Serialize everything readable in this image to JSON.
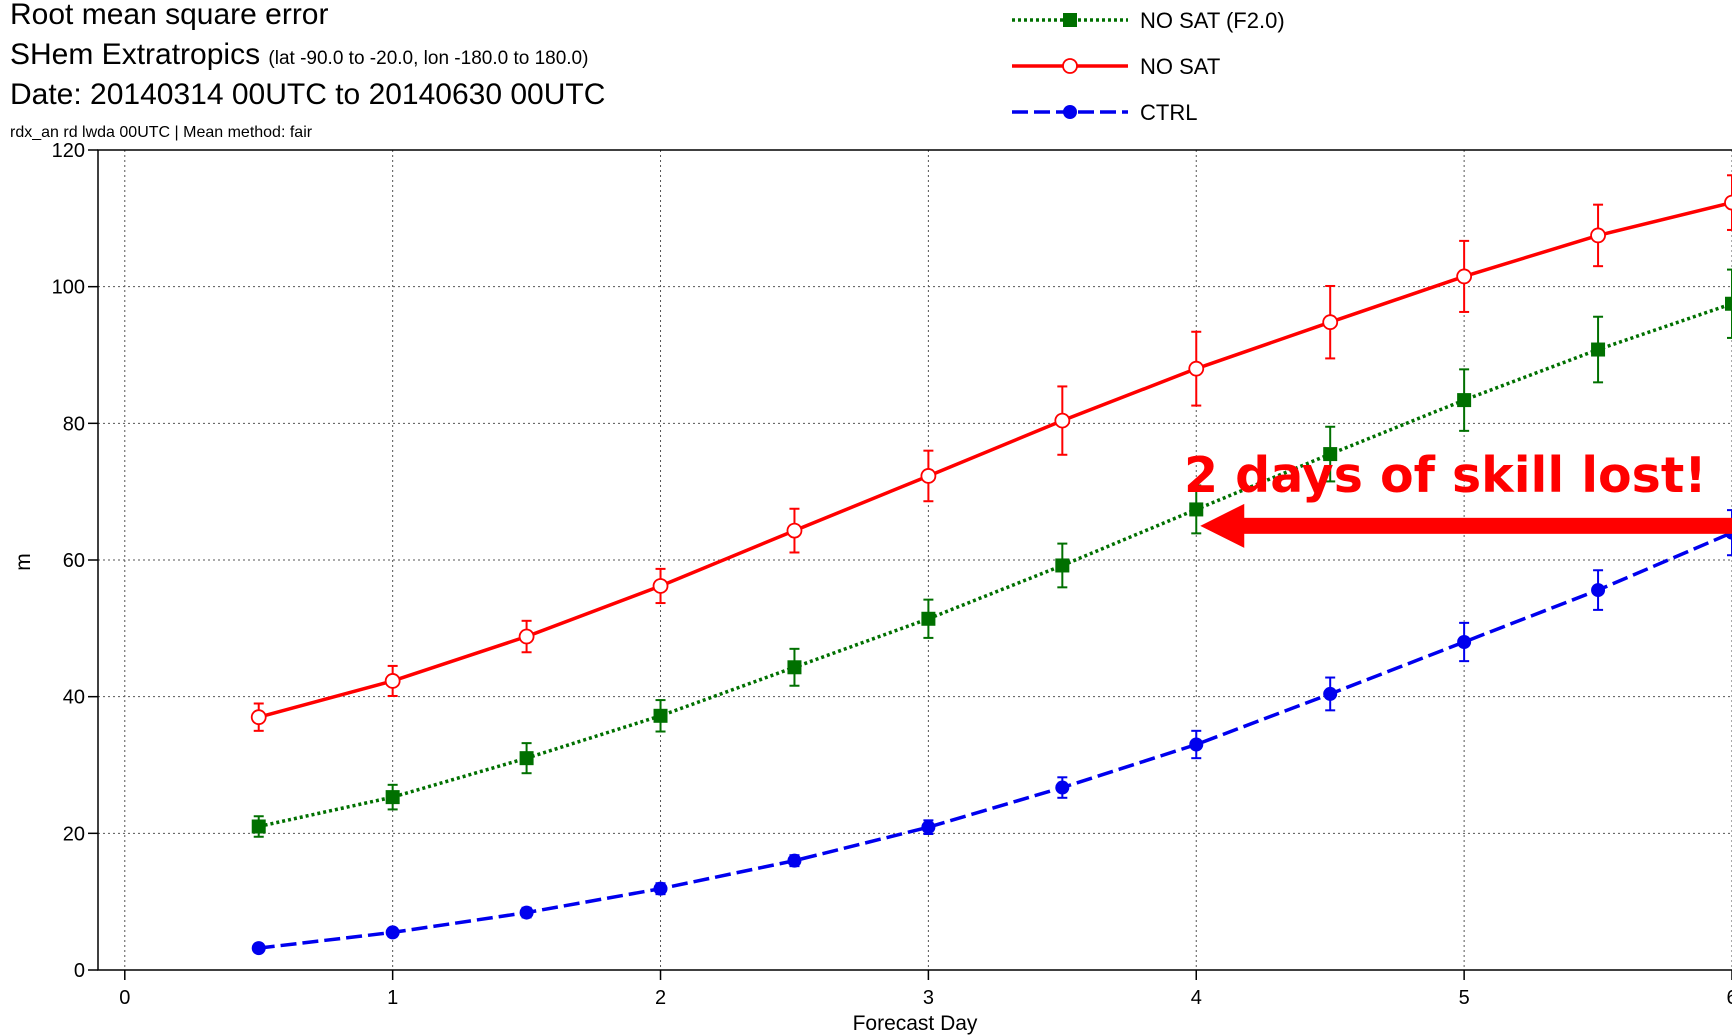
{
  "header": {
    "title": "Root mean square error",
    "region": "SHem Extratropics",
    "region_bounds": "(lat -90.0 to -20.0, lon -180.0 to 180.0)",
    "date_range": "Date: 20140314 00UTC to 20140630 00UTC",
    "method": "rdx_an rd lwda 00UTC | Mean method: fair"
  },
  "chart_data": {
    "type": "line",
    "xlabel": "Forecast Day",
    "ylabel": "m",
    "xlim": [
      -0.1,
      6.0
    ],
    "ylim": [
      0,
      120
    ],
    "xticks": [
      "0",
      "1",
      "2",
      "3",
      "4",
      "5",
      "6"
    ],
    "yticks": [
      "0",
      "20",
      "40",
      "60",
      "80",
      "100",
      "120"
    ],
    "grid": true,
    "legend_position": "top-center",
    "x": [
      0.5,
      1.0,
      1.5,
      2.0,
      2.5,
      3.0,
      3.5,
      4.0,
      4.5,
      5.0,
      5.5,
      6.0
    ],
    "series": [
      {
        "name": "NO SAT (F2.0)",
        "color": "#007000",
        "line_style": "dotted",
        "marker": "filled-square",
        "values": [
          21,
          25.3,
          31,
          37.2,
          44.3,
          51.4,
          59.2,
          67.4,
          75.5,
          83.4,
          90.8,
          97.5
        ],
        "error": [
          1.5,
          1.8,
          2.2,
          2.3,
          2.7,
          2.8,
          3.2,
          3.5,
          4.0,
          4.5,
          4.8,
          5.0
        ]
      },
      {
        "name": "NO SAT",
        "color": "#ff0000",
        "line_style": "solid",
        "marker": "open-circle",
        "values": [
          37,
          42.3,
          48.8,
          56.2,
          64.3,
          72.3,
          80.4,
          88.0,
          94.8,
          101.5,
          107.5,
          112.3
        ],
        "error": [
          2.0,
          2.2,
          2.3,
          2.5,
          3.2,
          3.7,
          5.0,
          5.4,
          5.3,
          5.2,
          4.5,
          4.0
        ]
      },
      {
        "name": "CTRL",
        "color": "#0000ee",
        "line_style": "dashed",
        "marker": "filled-circle",
        "values": [
          3.2,
          5.5,
          8.4,
          11.9,
          16.0,
          20.9,
          26.7,
          33.0,
          40.4,
          48.0,
          55.6,
          64.0
        ],
        "error": [
          0.4,
          0.6,
          0.7,
          0.8,
          0.8,
          1.0,
          1.5,
          2.0,
          2.4,
          2.8,
          2.9,
          3.3
        ]
      }
    ],
    "annotation": {
      "text": "2 days of skill lost!",
      "color": "#ff0000",
      "arrow_from": [
        6.0,
        65
      ],
      "arrow_to": [
        4.0,
        65
      ]
    }
  }
}
